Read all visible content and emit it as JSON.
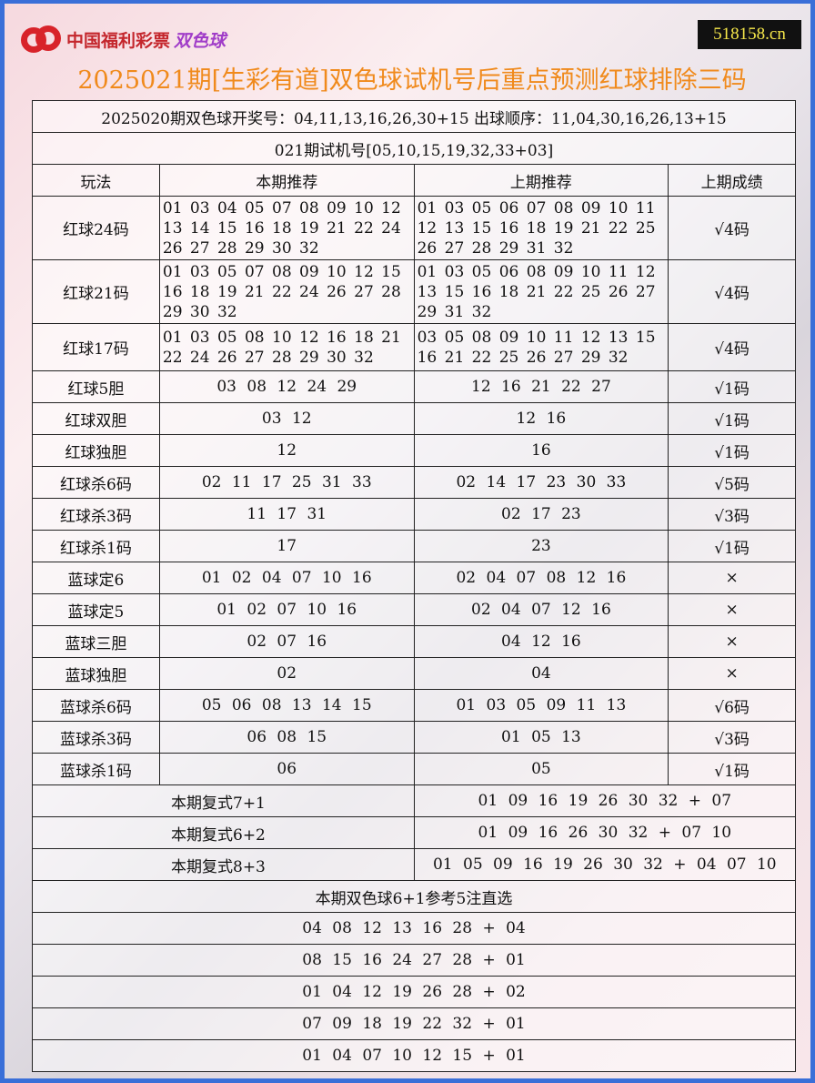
{
  "logo": {
    "text": "中国福利彩票",
    "brand": "双色球"
  },
  "site": "518158.cn",
  "title": "2025021期[生彩有道]双色球试机号后重点预测红球排除三码",
  "draw_info": "2025020期双色球开奖号：04,11,13,16,26,30+15 出球顺序：11,04,30,16,26,13+15",
  "test_number": "021期试机号[05,10,15,19,32,33+03]",
  "headers": [
    "玩法",
    "本期推荐",
    "上期推荐",
    "上期成绩"
  ],
  "rows": [
    {
      "name": "红球24码",
      "cur": "01 03 04 05 07 08 09 10 12 13 14 15 16 18 19 21 22 24 26 27 28 29 30 32",
      "prev": "01 03 05 06 07 08 09 10 11 12 13 15 16 18 19 21 22 25 26 27 28 29 31 32",
      "result": "√4码",
      "h": 70
    },
    {
      "name": "红球21码",
      "cur": "01 03 05 07 08 09 10 12 15 16 18 19 21 22 24 26 27 28 29 30 32",
      "prev": "01 03 05 06 08 09 10 11 12 13 15 16 18 21 22 25 26 27 29 31 32",
      "result": "√4码",
      "h": 70
    },
    {
      "name": "红球17码",
      "cur": "01 03 05 08 10 12 16 18 21 22 24 26 27 28 29 30 32",
      "prev": "03 05 08 09 10 11 12 13 15 16 21 22 25 26 27 29 32",
      "result": "√4码",
      "h": 52
    },
    {
      "name": "红球5胆",
      "cur": "03 08 12 24 29",
      "prev": "12 16 21 22 27",
      "result": "√1码"
    },
    {
      "name": "红球双胆",
      "cur": "03 12",
      "prev": "12 16",
      "result": "√1码"
    },
    {
      "name": "红球独胆",
      "cur": "12",
      "prev": "16",
      "result": "√1码"
    },
    {
      "name": "红球杀6码",
      "cur": "02 11 17 25 31 33",
      "prev": "02 14 17 23 30 33",
      "result": "√5码"
    },
    {
      "name": "红球杀3码",
      "cur": "11 17 31",
      "prev": "02 17 23",
      "result": "√3码"
    },
    {
      "name": "红球杀1码",
      "cur": "17",
      "prev": "23",
      "result": "√1码"
    },
    {
      "name": "蓝球定6",
      "cur": "01 02 04 07 10 16",
      "prev": "02 04 07 08 12 16",
      "result": "×"
    },
    {
      "name": "蓝球定5",
      "cur": "01 02 07 10 16",
      "prev": "02 04 07 12 16",
      "result": "×"
    },
    {
      "name": "蓝球三胆",
      "cur": "02 07 16",
      "prev": "04 12 16",
      "result": "×"
    },
    {
      "name": "蓝球独胆",
      "cur": "02",
      "prev": "04",
      "result": "×"
    },
    {
      "name": "蓝球杀6码",
      "cur": "05 06 08 13 14 15",
      "prev": "01 03 05 09 11 13",
      "result": "√6码"
    },
    {
      "name": "蓝球杀3码",
      "cur": "06 08 15",
      "prev": "01 05 13",
      "result": "√3码"
    },
    {
      "name": "蓝球杀1码",
      "cur": "06",
      "prev": "05",
      "result": "√1码"
    }
  ],
  "fushi": [
    {
      "label": "本期复式7+1",
      "value": "01 09 16 19 26 30 32 + 07"
    },
    {
      "label": "本期复式6+2",
      "value": "01 09 16 26 30 32 + 07 10"
    },
    {
      "label": "本期复式8+3",
      "value": "01 05 09 16 19 26 30 32 + 04 07 10"
    }
  ],
  "picks_title": "本期双色球6+1参考5注直选",
  "picks": [
    "04 08 12 13 16 28 + 04",
    "08 15 16 24 27 28 + 01",
    "01 04 12 19 26 28 + 02",
    "07 09 18 19 22 32 + 01",
    "01 04 07 10 12 15 + 01"
  ]
}
